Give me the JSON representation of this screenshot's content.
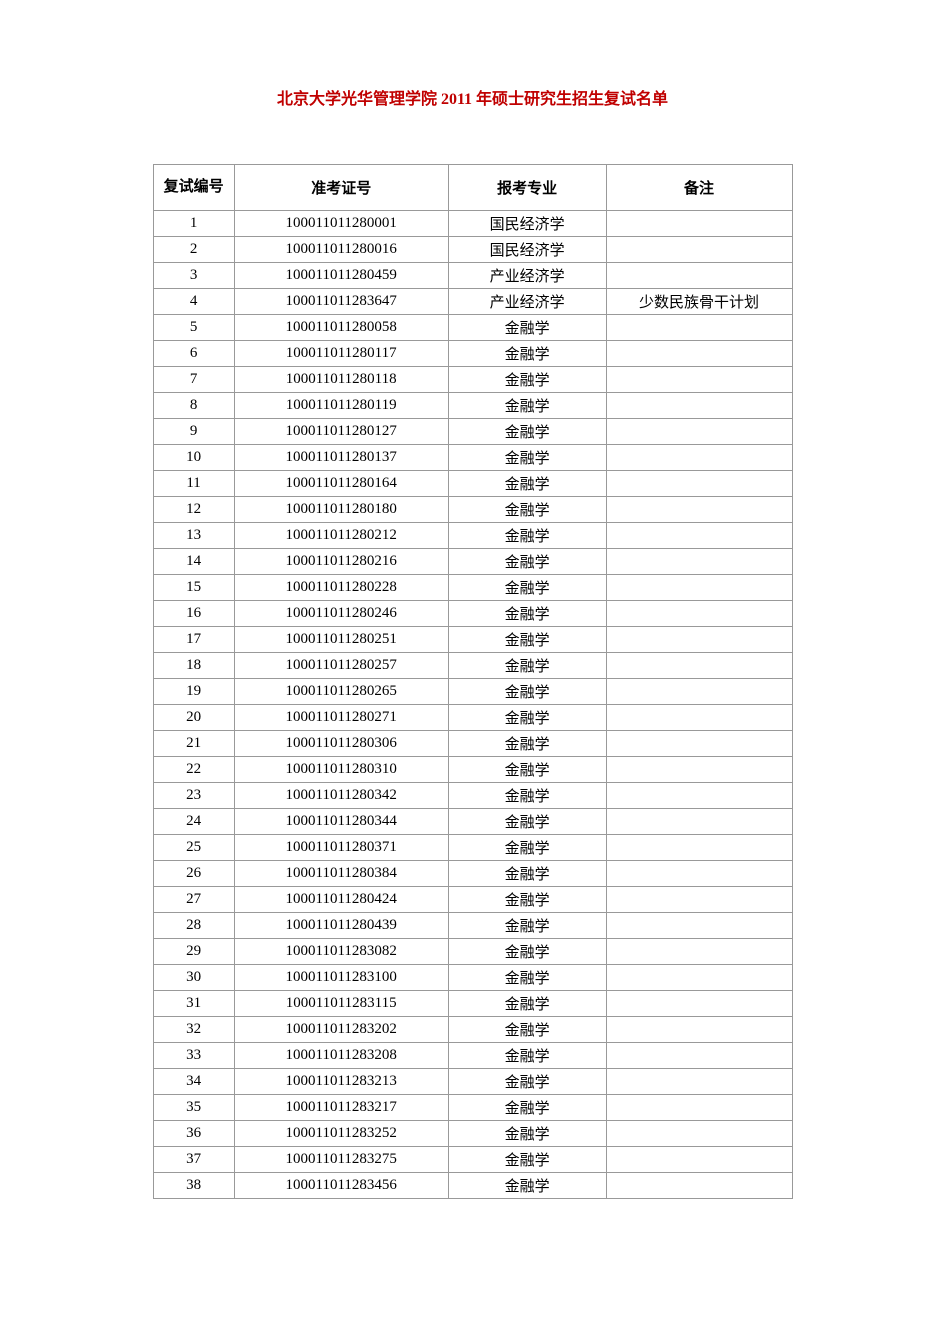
{
  "title": "北京大学光华管理学院 2011 年硕士研究生招生复试名单",
  "table": {
    "columns": {
      "index": "复试编号",
      "exam_id": "准考证号",
      "major": "报考专业",
      "remark": "备注"
    },
    "column_widths": {
      "index": 72,
      "exam_id": 190,
      "major": 140,
      "remark": 165
    },
    "rows": [
      {
        "index": "1",
        "exam_id": "100011011280001",
        "major": "国民经济学",
        "remark": ""
      },
      {
        "index": "2",
        "exam_id": "100011011280016",
        "major": "国民经济学",
        "remark": ""
      },
      {
        "index": "3",
        "exam_id": "100011011280459",
        "major": "产业经济学",
        "remark": ""
      },
      {
        "index": "4",
        "exam_id": "100011011283647",
        "major": "产业经济学",
        "remark": "少数民族骨干计划"
      },
      {
        "index": "5",
        "exam_id": "100011011280058",
        "major": "金融学",
        "remark": ""
      },
      {
        "index": "6",
        "exam_id": "100011011280117",
        "major": "金融学",
        "remark": ""
      },
      {
        "index": "7",
        "exam_id": "100011011280118",
        "major": "金融学",
        "remark": ""
      },
      {
        "index": "8",
        "exam_id": "100011011280119",
        "major": "金融学",
        "remark": ""
      },
      {
        "index": "9",
        "exam_id": "100011011280127",
        "major": "金融学",
        "remark": ""
      },
      {
        "index": "10",
        "exam_id": "100011011280137",
        "major": "金融学",
        "remark": ""
      },
      {
        "index": "11",
        "exam_id": "100011011280164",
        "major": "金融学",
        "remark": ""
      },
      {
        "index": "12",
        "exam_id": "100011011280180",
        "major": "金融学",
        "remark": ""
      },
      {
        "index": "13",
        "exam_id": "100011011280212",
        "major": "金融学",
        "remark": ""
      },
      {
        "index": "14",
        "exam_id": "100011011280216",
        "major": "金融学",
        "remark": ""
      },
      {
        "index": "15",
        "exam_id": "100011011280228",
        "major": "金融学",
        "remark": ""
      },
      {
        "index": "16",
        "exam_id": "100011011280246",
        "major": "金融学",
        "remark": ""
      },
      {
        "index": "17",
        "exam_id": "100011011280251",
        "major": "金融学",
        "remark": ""
      },
      {
        "index": "18",
        "exam_id": "100011011280257",
        "major": "金融学",
        "remark": ""
      },
      {
        "index": "19",
        "exam_id": "100011011280265",
        "major": "金融学",
        "remark": ""
      },
      {
        "index": "20",
        "exam_id": "100011011280271",
        "major": "金融学",
        "remark": ""
      },
      {
        "index": "21",
        "exam_id": "100011011280306",
        "major": "金融学",
        "remark": ""
      },
      {
        "index": "22",
        "exam_id": "100011011280310",
        "major": "金融学",
        "remark": ""
      },
      {
        "index": "23",
        "exam_id": "100011011280342",
        "major": "金融学",
        "remark": ""
      },
      {
        "index": "24",
        "exam_id": "100011011280344",
        "major": "金融学",
        "remark": ""
      },
      {
        "index": "25",
        "exam_id": "100011011280371",
        "major": "金融学",
        "remark": ""
      },
      {
        "index": "26",
        "exam_id": "100011011280384",
        "major": "金融学",
        "remark": ""
      },
      {
        "index": "27",
        "exam_id": "100011011280424",
        "major": "金融学",
        "remark": ""
      },
      {
        "index": "28",
        "exam_id": "100011011280439",
        "major": "金融学",
        "remark": ""
      },
      {
        "index": "29",
        "exam_id": "100011011283082",
        "major": "金融学",
        "remark": ""
      },
      {
        "index": "30",
        "exam_id": "100011011283100",
        "major": "金融学",
        "remark": ""
      },
      {
        "index": "31",
        "exam_id": "100011011283115",
        "major": "金融学",
        "remark": ""
      },
      {
        "index": "32",
        "exam_id": "100011011283202",
        "major": "金融学",
        "remark": ""
      },
      {
        "index": "33",
        "exam_id": "100011011283208",
        "major": "金融学",
        "remark": ""
      },
      {
        "index": "34",
        "exam_id": "100011011283213",
        "major": "金融学",
        "remark": ""
      },
      {
        "index": "35",
        "exam_id": "100011011283217",
        "major": "金融学",
        "remark": ""
      },
      {
        "index": "36",
        "exam_id": "100011011283252",
        "major": "金融学",
        "remark": ""
      },
      {
        "index": "37",
        "exam_id": "100011011283275",
        "major": "金融学",
        "remark": ""
      },
      {
        "index": "38",
        "exam_id": "100011011283456",
        "major": "金融学",
        "remark": ""
      }
    ]
  },
  "style": {
    "title_color": "#c00000",
    "title_fontsize": 16,
    "body_fontsize": 15,
    "border_color": "#999999",
    "text_color": "#000000",
    "background_color": "#ffffff",
    "header_row_height": 46,
    "body_row_height": 26
  }
}
